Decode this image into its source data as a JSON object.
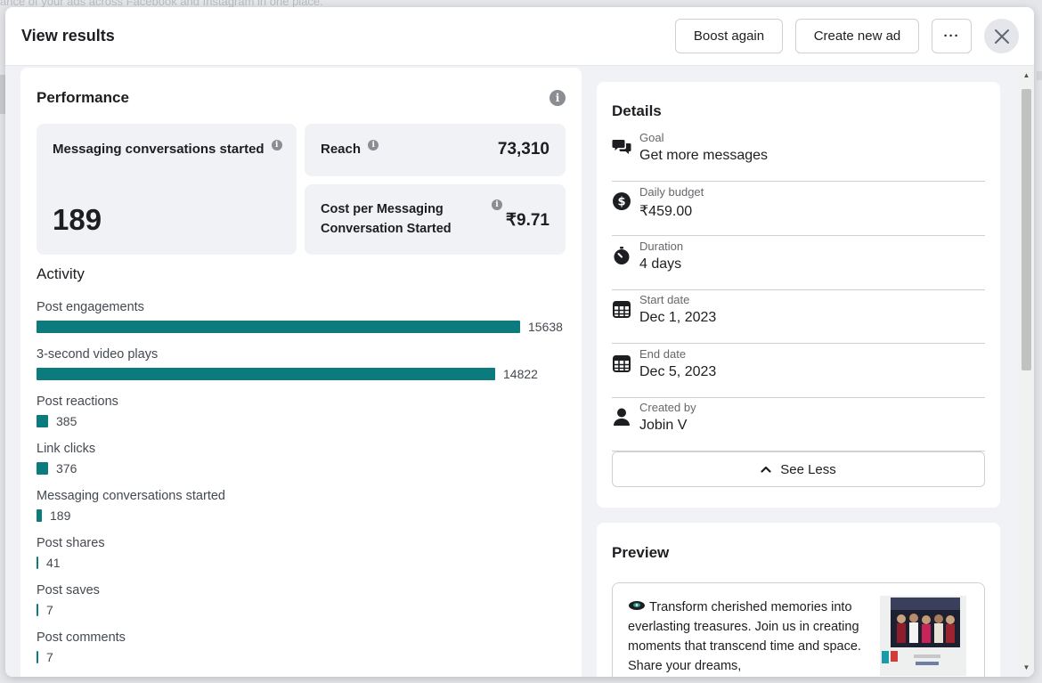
{
  "background": {
    "partial_text": "ance of your ads across Facebook and Instagram in one place."
  },
  "header": {
    "title": "View results",
    "boost_again": "Boost again",
    "create_new_ad": "Create new ad",
    "more": "···",
    "close_icon": "close-icon"
  },
  "performance": {
    "title": "Performance",
    "messaging": {
      "label": "Messaging conversations started",
      "value": "189"
    },
    "reach": {
      "label": "Reach",
      "value": "73,310"
    },
    "cost": {
      "label_line1": "Cost per Messaging",
      "label_line2": "Conversation Started",
      "value": "₹9.71"
    },
    "info_glyph": "i"
  },
  "activity": {
    "title": "Activity",
    "bar_color": "#0b7b7e",
    "max": 15638,
    "items": [
      {
        "label": "Post engagements",
        "value": 15638
      },
      {
        "label": "3-second video plays",
        "value": 14822
      },
      {
        "label": "Post reactions",
        "value": 385
      },
      {
        "label": "Link clicks",
        "value": 376
      },
      {
        "label": "Messaging conversations started",
        "value": 189
      },
      {
        "label": "Post shares",
        "value": 41
      },
      {
        "label": "Post saves",
        "value": 7
      },
      {
        "label": "Post comments",
        "value": 7
      }
    ]
  },
  "details": {
    "title": "Details",
    "items": [
      {
        "icon": "chat-bubbles-icon",
        "label": "Goal",
        "value": "Get more messages"
      },
      {
        "icon": "dollar-circle-icon",
        "label": "Daily budget",
        "value": "₹459.00"
      },
      {
        "icon": "stopwatch-icon",
        "label": "Duration",
        "value": "4 days"
      },
      {
        "icon": "calendar-icon",
        "label": "Start date",
        "value": "Dec 1, 2023"
      },
      {
        "icon": "calendar-icon",
        "label": "End date",
        "value": "Dec 5, 2023"
      },
      {
        "icon": "person-icon",
        "label": "Created by",
        "value": "Jobin V"
      }
    ],
    "see_less": "See Less"
  },
  "preview": {
    "title": "Preview",
    "text": "Transform cherished memories into everlasting treasures. Join us in creating moments that transcend time and space. Share your dreams,"
  }
}
